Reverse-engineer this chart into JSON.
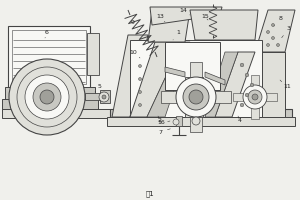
{
  "bg_color": "#f0f0ec",
  "line_color": "#444444",
  "fill_light": "#e0e0da",
  "fill_mid": "#c8c8c2",
  "fill_dark": "#a0a09a",
  "fill_white": "#f8f8f5",
  "title": "图1",
  "figsize": [
    3.0,
    2.0
  ],
  "dpi": 100
}
